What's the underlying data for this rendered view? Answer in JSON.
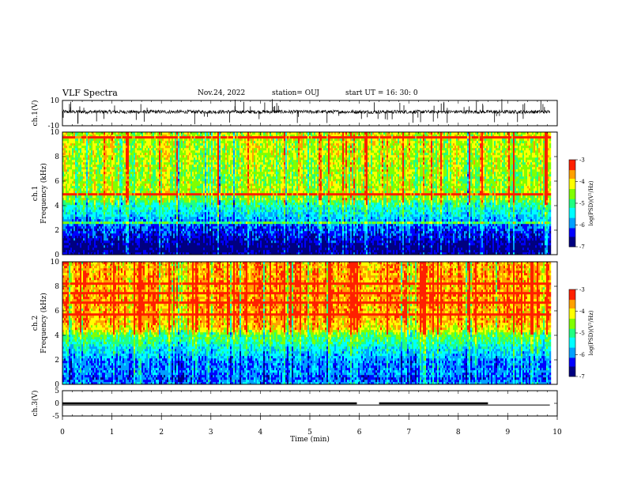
{
  "header": {
    "title": "VLF Spectra",
    "date": "Nov.24, 2022",
    "station": "station= OUJ",
    "start": "start  UT =   16: 30: 0"
  },
  "chart_data": [
    {
      "type": "line",
      "name_label": "ch.1(V)",
      "ylim": [
        -10,
        10
      ],
      "yticks": [
        "10",
        "-10"
      ],
      "baseline": 1,
      "noise": 1.4,
      "xlim": [
        0,
        10
      ]
    },
    {
      "type": "heatmap",
      "ylabel_lines": [
        "ch.1",
        "Frequency (kHz)"
      ],
      "ylim": [
        0,
        10
      ],
      "yticks": [
        "0",
        "2",
        "4",
        "6",
        "8",
        "10"
      ],
      "xlim": [
        0,
        10
      ],
      "data_end_min": 9.85,
      "colorbar": {
        "label": "log(PSD)(V²/Hz)",
        "ticks": [
          "-3",
          "-4",
          "-5",
          "-6",
          "-7"
        ],
        "range": [
          -7,
          -3
        ]
      },
      "rows_khz": [
        0,
        0.5,
        1,
        1.5,
        2,
        2.5,
        3,
        3.5,
        4,
        4.5,
        5,
        5.5,
        6,
        6.5,
        7,
        7.5,
        8,
        8.5,
        9,
        9.5,
        10
      ],
      "mean_log_psd": [
        -6.6,
        -6.9,
        -6.6,
        -6.4,
        -6.2,
        -6.0,
        -5.7,
        -5.4,
        -5.2,
        -4.6,
        -4.4,
        -4.4,
        -4.5,
        -4.5,
        -4.4,
        -4.4,
        -4.3,
        -4.3,
        -4.3,
        -4.3,
        -4.3
      ]
    },
    {
      "type": "heatmap",
      "ylabel_lines": [
        "ch.2",
        "Frequency (kHz)"
      ],
      "ylim": [
        0,
        10
      ],
      "yticks": [
        "0",
        "2",
        "4",
        "6",
        "8",
        "10"
      ],
      "xlim": [
        0,
        10
      ],
      "data_end_min": 9.85,
      "colorbar": {
        "label": "log(PSD)(V²/Hz)",
        "ticks": [
          "-3",
          "-4",
          "-5",
          "-6",
          "-7"
        ],
        "range": [
          -7,
          -3
        ]
      },
      "rows_khz": [
        0,
        0.5,
        1,
        1.5,
        2,
        2.5,
        3,
        3.5,
        4,
        4.5,
        5,
        5.5,
        6,
        6.5,
        7,
        7.5,
        8,
        8.5,
        9,
        9.5,
        10
      ],
      "mean_log_psd": [
        -5.8,
        -6.2,
        -5.9,
        -6.0,
        -5.9,
        -5.6,
        -5.4,
        -5.0,
        -4.8,
        -4.0,
        -3.8,
        -3.7,
        -3.7,
        -3.6,
        -3.6,
        -3.7,
        -3.7,
        -3.7,
        -3.7,
        -3.7,
        -3.7
      ]
    },
    {
      "type": "line",
      "name_label": "ch.3(V)",
      "ylim": [
        -5,
        5
      ],
      "yticks": [
        "5",
        "0",
        "-5"
      ],
      "xlim": [
        0,
        10
      ],
      "xlabel": "Time (min)",
      "xticks": [
        "0",
        "1",
        "2",
        "3",
        "4",
        "5",
        "6",
        "7",
        "8",
        "9",
        "10"
      ],
      "segments": [
        {
          "x": [
            0,
            5.95
          ],
          "y": 0
        },
        {
          "x": [
            6.4,
            8.6
          ],
          "y": 0
        }
      ],
      "baseline_line": {
        "x": [
          0,
          9.85
        ],
        "y": -0.2
      }
    }
  ],
  "colors": {
    "colormap": [
      "#000080",
      "#0000ff",
      "#00a0ff",
      "#00ffff",
      "#20ff80",
      "#80ff00",
      "#ffff00",
      "#ffa000",
      "#ff2000",
      "#ffffff"
    ]
  }
}
